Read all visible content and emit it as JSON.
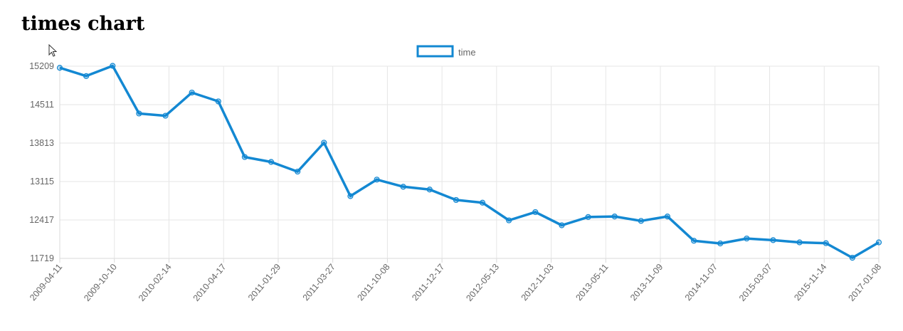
{
  "page_title": "times chart",
  "colors": {
    "series": "#1388d2",
    "grid": "#e6e6e6",
    "axis": "#d9d9d9",
    "tick_text": "#666666"
  },
  "icons": {
    "cursor": "mouse-pointer-icon"
  },
  "chart_data": {
    "type": "line",
    "title": "",
    "xlabel": "",
    "ylabel": "",
    "legend": {
      "position": "top",
      "entries": [
        "time"
      ]
    },
    "grid": true,
    "ylim": [
      11719,
      15209
    ],
    "y_ticks": [
      "15209",
      "14511",
      "13813",
      "13115",
      "12417",
      "11719"
    ],
    "x_tick_labels": [
      "2009-04-11",
      "2009-10-10",
      "2010-02-14",
      "2010-04-17",
      "2011-01-29",
      "2011-03-27",
      "2011-10-08",
      "2011-12-17",
      "2012-05-13",
      "2012-11-03",
      "2013-05-11",
      "2013-11-09",
      "2014-11-07",
      "2015-03-07",
      "2015-11-14",
      "2017-01-08"
    ],
    "series": [
      {
        "name": "time",
        "values": [
          15180,
          15030,
          15215,
          14350,
          14310,
          14730,
          14570,
          13560,
          13470,
          13295,
          13820,
          12850,
          13150,
          13020,
          12970,
          12780,
          12730,
          12410,
          12560,
          12320,
          12470,
          12480,
          12400,
          12480,
          12040,
          11990,
          12080,
          12050,
          12010,
          11995,
          11730,
          12010
        ]
      }
    ]
  }
}
